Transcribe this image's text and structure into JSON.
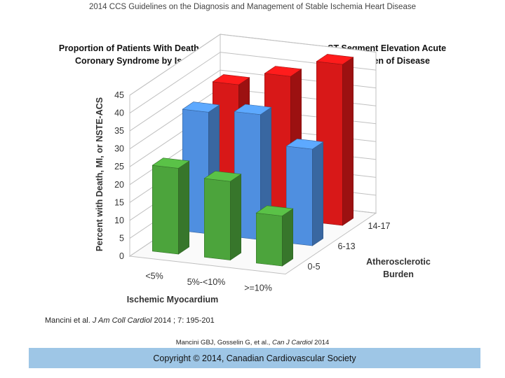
{
  "header": {
    "text": "2014 CCS Guidelines on the Diagnosis and Management of Stable Ischemia Heart Disease"
  },
  "citation": {
    "prefix": "Mancini et al. ",
    "journal": "J Am Coll Cardiol",
    "suffix": " 2014 ; 7: 195-201"
  },
  "citation2": {
    "prefix": "Mancini GBJ, Gosselin G, et al., ",
    "journal": "Can J Cardiol",
    "suffix": " 2014"
  },
  "copyright": {
    "text": "Copyright © 2014, Canadian Cardiovascular Society"
  },
  "colors": {
    "red": "#d81818",
    "blue": "#4f8fe0",
    "green": "#4ca43c",
    "grid": "#c0c0c0"
  },
  "chart_data": {
    "type": "bar",
    "title_line1": "Proportion of Patients With Death, Myocardial Infarction or Non–ST-Segment Elevation Acute",
    "title_line2": "Coronary Syndrome by Ischemic Myocardium and Atherosclerotic Burden of Disease",
    "ylabel": "Percent with Death, MI, or NSTE-ACS",
    "xlabel": "Ischemic Myocardium",
    "zlabel_line1": "Atherosclerotic",
    "zlabel_line2": "Burden",
    "ylim": [
      0,
      45
    ],
    "yticks": [
      "0",
      "5",
      "10",
      "15",
      "20",
      "25",
      "30",
      "35",
      "40",
      "45"
    ],
    "categories": [
      "<5%",
      "5%-<10%",
      ">=10%"
    ],
    "depth_categories": [
      "0-5",
      "6-13",
      "14-17"
    ],
    "series": [
      {
        "name": "0-5",
        "color": "#4ca43c",
        "values": [
          24,
          22,
          14
        ]
      },
      {
        "name": "6-13",
        "color": "#4f8fe0",
        "values": [
          34,
          35,
          27
        ]
      },
      {
        "name": "14-17",
        "color": "#d81818",
        "values": [
          36,
          40,
          45
        ]
      }
    ]
  }
}
